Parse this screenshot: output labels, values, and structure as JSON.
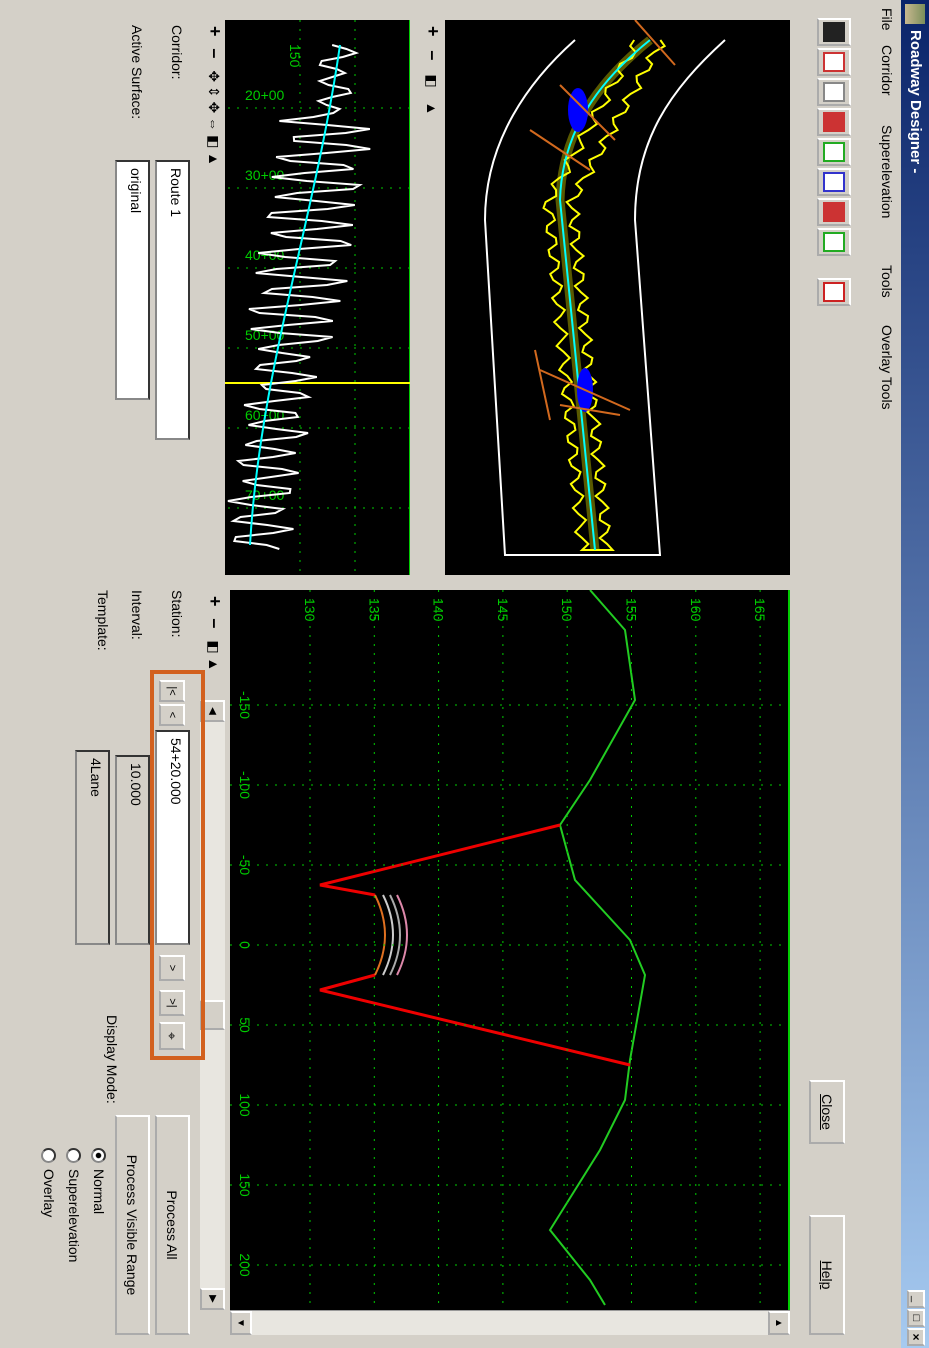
{
  "window": {
    "title": "Roadway Designer -"
  },
  "menu": [
    "File",
    "Corridor",
    "Superelevation",
    "Tools",
    "Overlay Tools"
  ],
  "buttons": {
    "close": "Close",
    "help": "Help",
    "process_all": "Process All",
    "process_visible": "Process Visible Range"
  },
  "profile_view": {
    "y_labels": [
      "150"
    ],
    "x_labels": [
      "20+00",
      "30+00",
      "40+00",
      "50+00",
      "60+00",
      "70+00"
    ]
  },
  "cross_section": {
    "x_labels": [
      "-150",
      "-100",
      "-50",
      "0",
      "50",
      "100",
      "150",
      "200"
    ],
    "y_labels": [
      "130",
      "135",
      "140",
      "145",
      "150",
      "155",
      "160",
      "165"
    ]
  },
  "fields": {
    "corridor_label": "Corridor:",
    "corridor": "Route 1",
    "active_surface_label": "Active Surface:",
    "active_surface": "original",
    "station_label": "Station:",
    "station": "54+20.000",
    "interval_label": "Interval:",
    "interval": "10.000",
    "template_label": "Template:",
    "template": "4Lane"
  },
  "display_mode": {
    "label": "Display Mode:",
    "options": [
      "Normal",
      "Superelevation",
      "Overlay"
    ],
    "selected": 0
  }
}
